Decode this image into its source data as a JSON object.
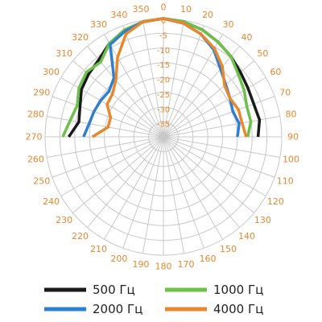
{
  "chart_data": {
    "type": "line",
    "subtype": "polar",
    "angle_unit": "degrees",
    "angle_direction": "clockwise",
    "angle_zero": "top",
    "angle_ticks": [
      "0",
      "10",
      "20",
      "30",
      "40",
      "50",
      "60",
      "70",
      "80",
      "90",
      "100",
      "110",
      "120",
      "130",
      "140",
      "150",
      "160",
      "170",
      "180",
      "190",
      "200",
      "210",
      "220",
      "230",
      "240",
      "250",
      "260",
      "270",
      "280",
      "290",
      "300",
      "310",
      "320",
      "330",
      "340",
      "350"
    ],
    "radial_ticks": [
      "0",
      "-5",
      "-10",
      "-15",
      "-20",
      "-25",
      "-30",
      "-35"
    ],
    "radial_range": [
      -40,
      0
    ],
    "grid": true,
    "legend_position": "bottom",
    "colors": {
      "tick_labels": "#e8872e",
      "grid": "#c8c8c8",
      "legend_text": "#222222"
    },
    "series": [
      {
        "name": "500 Гц",
        "color": "#1a1a1a",
        "points": [
          [
            270,
            -8
          ],
          [
            280,
            -11
          ],
          [
            290,
            -10
          ],
          [
            300,
            -8
          ],
          [
            310,
            -7
          ],
          [
            320,
            -6
          ],
          [
            330,
            -3.5
          ],
          [
            340,
            -2
          ],
          [
            350,
            -0.5
          ],
          [
            0,
            0
          ],
          [
            10,
            -0.5
          ],
          [
            20,
            -1.5
          ],
          [
            30,
            -3
          ],
          [
            40,
            -4.5
          ],
          [
            50,
            -6
          ],
          [
            60,
            -7
          ],
          [
            70,
            -7.5
          ],
          [
            80,
            -7
          ],
          [
            90,
            -8
          ]
        ]
      },
      {
        "name": "1000 Гц",
        "color": "#6dc04a",
        "points": [
          [
            270,
            -6
          ],
          [
            280,
            -8
          ],
          [
            290,
            -9
          ],
          [
            300,
            -7
          ],
          [
            310,
            -6
          ],
          [
            320,
            -7
          ],
          [
            330,
            -3.5
          ],
          [
            340,
            -1.5
          ],
          [
            350,
            -0.5
          ],
          [
            0,
            0
          ],
          [
            10,
            -0.5
          ],
          [
            20,
            -1.5
          ],
          [
            30,
            -3
          ],
          [
            40,
            -4.5
          ],
          [
            50,
            -7
          ],
          [
            60,
            -8.5
          ],
          [
            70,
            -10
          ],
          [
            80,
            -10
          ],
          [
            90,
            -11.5
          ]
        ]
      },
      {
        "name": "2000 Гц",
        "color": "#2f7fd0",
        "points": [
          [
            270,
            -13
          ],
          [
            280,
            -14.5
          ],
          [
            290,
            -15
          ],
          [
            300,
            -15.5
          ],
          [
            310,
            -16
          ],
          [
            320,
            -14
          ],
          [
            330,
            -4
          ],
          [
            340,
            -2
          ],
          [
            350,
            -0.5
          ],
          [
            0,
            0
          ],
          [
            10,
            -1
          ],
          [
            20,
            -3
          ],
          [
            30,
            -6
          ],
          [
            40,
            -10
          ],
          [
            50,
            -12.5
          ],
          [
            60,
            -14
          ],
          [
            70,
            -15
          ],
          [
            80,
            -14
          ],
          [
            90,
            -15
          ]
        ]
      },
      {
        "name": "4000 Гц",
        "color": "#e8872e",
        "points": [
          [
            270,
            -16
          ],
          [
            280,
            -21
          ],
          [
            290,
            -21
          ],
          [
            300,
            -18
          ],
          [
            310,
            -17.5
          ],
          [
            320,
            -15
          ],
          [
            330,
            -9
          ],
          [
            340,
            -3
          ],
          [
            350,
            -0.5
          ],
          [
            0,
            0
          ],
          [
            10,
            -1
          ],
          [
            20,
            -3
          ],
          [
            30,
            -5.5
          ],
          [
            40,
            -9
          ],
          [
            50,
            -13
          ],
          [
            60,
            -14
          ],
          [
            70,
            -13
          ],
          [
            80,
            -13
          ],
          [
            90,
            -12
          ]
        ]
      }
    ]
  }
}
